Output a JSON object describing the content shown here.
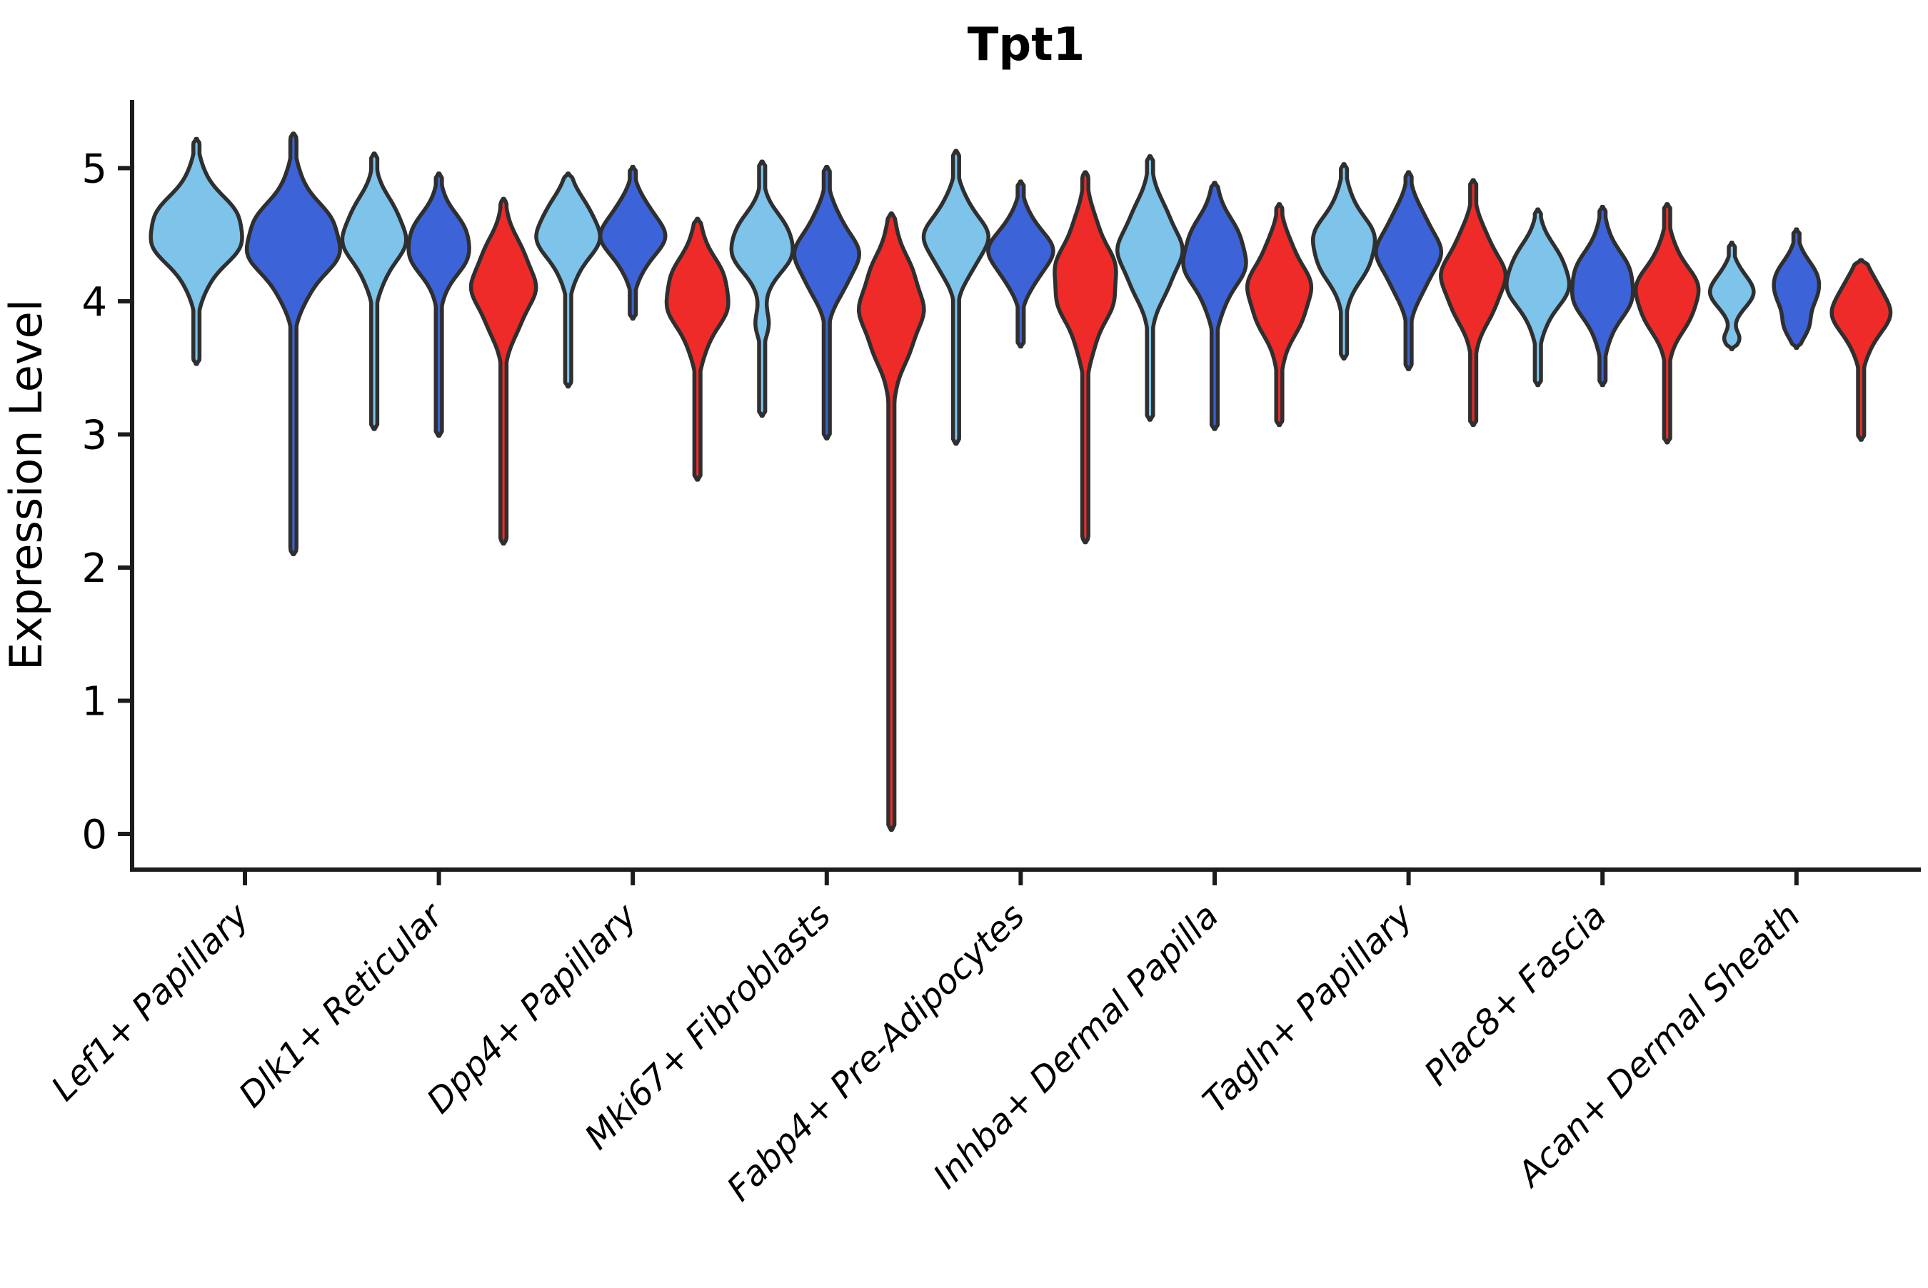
{
  "title": "Tpt1",
  "y_axis": {
    "label": "Expression Level",
    "ticks": [
      0,
      1,
      2,
      3,
      4,
      5
    ]
  },
  "x_axis": {
    "categories": [
      "Lef1+ Papillary",
      "Dlk1+ Reticular",
      "Dpp4+ Papillary",
      "Mki67+ Fibroblasts",
      "Fabp4+ Pre-Adipocytes",
      "Inhba+ Dermal Papilla",
      "Tagln+ Papillary",
      "Plac8+ Fascia",
      "Acan+ Dermal Sheath"
    ]
  },
  "splits": [
    {
      "key": "lightblue",
      "color": "#7DC3EA"
    },
    {
      "key": "blue",
      "color": "#3C64D8"
    },
    {
      "key": "red",
      "color": "#EE2B28"
    }
  ],
  "style": {
    "background": "#FFFFFF",
    "violin_outline": "#2F2F2F",
    "axis_color": "#1C1C1C",
    "text_color": "#000000"
  },
  "chart_data": {
    "type": "violin",
    "title": "Tpt1",
    "xlabel": "",
    "ylabel": "Expression Level",
    "ylim": [
      0,
      5
    ],
    "grid": false,
    "legend_position": "none",
    "categories": [
      "Lef1+ Papillary",
      "Dlk1+ Reticular",
      "Dpp4+ Papillary",
      "Mki67+ Fibroblasts",
      "Fabp4+ Pre-Adipocytes",
      "Inhba+ Dermal Papilla",
      "Tagln+ Papillary",
      "Plac8+ Fascia",
      "Acan+ Dermal Sheath"
    ],
    "violins": [
      {
        "category": "Lef1+ Papillary",
        "split": "lightblue",
        "min": 3.53,
        "max": 5.22,
        "mode": 4.52,
        "sigma": 0.25,
        "extra_peaks": [],
        "rel_width": 1.0
      },
      {
        "category": "Lef1+ Papillary",
        "split": "blue",
        "min": 2.1,
        "max": 5.26,
        "mode": 4.44,
        "sigma": 0.27,
        "extra_peaks": [],
        "rel_width": 1.0
      },
      {
        "category": "Dlk1+ Reticular",
        "split": "lightblue",
        "min": 3.04,
        "max": 5.11,
        "mode": 4.49,
        "sigma": 0.23,
        "extra_peaks": [],
        "rel_width": 1.0
      },
      {
        "category": "Dlk1+ Reticular",
        "split": "blue",
        "min": 2.99,
        "max": 4.96,
        "mode": 4.42,
        "sigma": 0.21,
        "extra_peaks": [],
        "rel_width": 1.0
      },
      {
        "category": "Dlk1+ Reticular",
        "split": "red",
        "min": 2.18,
        "max": 4.77,
        "mode": 4.12,
        "sigma": 0.27,
        "extra_peaks": [],
        "rel_width": 1.0
      },
      {
        "category": "Dpp4+ Papillary",
        "split": "lightblue",
        "min": 3.36,
        "max": 4.96,
        "mode": 4.51,
        "sigma": 0.21,
        "extra_peaks": [],
        "rel_width": 1.0
      },
      {
        "category": "Dpp4+ Papillary",
        "split": "blue",
        "min": 3.87,
        "max": 5.01,
        "mode": 4.5,
        "sigma": 0.19,
        "extra_peaks": [],
        "rel_width": 1.0
      },
      {
        "category": "Dpp4+ Papillary",
        "split": "red",
        "min": 2.66,
        "max": 4.62,
        "mode": 4.04,
        "sigma": 0.26,
        "extra_peaks": [],
        "rel_width": 1.0
      },
      {
        "category": "Mki67+ Fibroblasts",
        "split": "lightblue",
        "min": 3.14,
        "max": 5.05,
        "mode": 4.42,
        "sigma": 0.2,
        "extra_peaks": [
          {
            "v": 3.82,
            "w": 0.2,
            "s": 0.1
          }
        ],
        "rel_width": 1.0
      },
      {
        "category": "Mki67+ Fibroblasts",
        "split": "blue",
        "min": 2.97,
        "max": 5.01,
        "mode": 4.34,
        "sigma": 0.23,
        "extra_peaks": [],
        "rel_width": 1.0
      },
      {
        "category": "Mki67+ Fibroblasts",
        "split": "red",
        "min": 0.03,
        "max": 4.66,
        "mode": 3.95,
        "sigma": 0.32,
        "extra_peaks": [],
        "rel_width": 1.0
      },
      {
        "category": "Fabp4+ Pre-Adipocytes",
        "split": "lightblue",
        "min": 2.93,
        "max": 5.13,
        "mode": 4.47,
        "sigma": 0.21,
        "extra_peaks": [],
        "rel_width": 1.0
      },
      {
        "category": "Fabp4+ Pre-Adipocytes",
        "split": "blue",
        "min": 3.66,
        "max": 4.9,
        "mode": 4.37,
        "sigma": 0.19,
        "extra_peaks": [],
        "rel_width": 1.0
      },
      {
        "category": "Fabp4+ Pre-Adipocytes",
        "split": "red",
        "min": 2.19,
        "max": 4.97,
        "mode": 4.15,
        "sigma": 0.32,
        "extra_peaks": [],
        "rel_width": 1.0
      },
      {
        "category": "Inhba+ Dermal Papilla",
        "split": "lightblue",
        "min": 3.11,
        "max": 5.09,
        "mode": 4.38,
        "sigma": 0.27,
        "extra_peaks": [],
        "rel_width": 1.0
      },
      {
        "category": "Inhba+ Dermal Papilla",
        "split": "blue",
        "min": 3.04,
        "max": 4.89,
        "mode": 4.33,
        "sigma": 0.25,
        "extra_peaks": [],
        "rel_width": 1.0
      },
      {
        "category": "Inhba+ Dermal Papilla",
        "split": "red",
        "min": 3.07,
        "max": 4.73,
        "mode": 4.07,
        "sigma": 0.27,
        "extra_peaks": [],
        "rel_width": 1.0
      },
      {
        "category": "Tagln+ Papillary",
        "split": "lightblue",
        "min": 3.57,
        "max": 5.03,
        "mode": 4.42,
        "sigma": 0.23,
        "extra_peaks": [],
        "rel_width": 1.0
      },
      {
        "category": "Tagln+ Papillary",
        "split": "blue",
        "min": 3.49,
        "max": 4.97,
        "mode": 4.37,
        "sigma": 0.24,
        "extra_peaks": [],
        "rel_width": 1.0
      },
      {
        "category": "Tagln+ Papillary",
        "split": "red",
        "min": 3.07,
        "max": 4.91,
        "mode": 4.17,
        "sigma": 0.26,
        "extra_peaks": [],
        "rel_width": 1.0
      },
      {
        "category": "Plac8+ Fascia",
        "split": "lightblue",
        "min": 3.37,
        "max": 4.69,
        "mode": 4.16,
        "sigma": 0.22,
        "extra_peaks": [],
        "rel_width": 1.0
      },
      {
        "category": "Plac8+ Fascia",
        "split": "blue",
        "min": 3.37,
        "max": 4.71,
        "mode": 4.11,
        "sigma": 0.24,
        "extra_peaks": [],
        "rel_width": 1.0
      },
      {
        "category": "Plac8+ Fascia",
        "split": "red",
        "min": 2.94,
        "max": 4.73,
        "mode": 4.05,
        "sigma": 0.23,
        "extra_peaks": [],
        "rel_width": 1.0
      },
      {
        "category": "Acan+ Dermal Sheath",
        "split": "lightblue",
        "min": 3.64,
        "max": 4.44,
        "mode": 4.08,
        "sigma": 0.13,
        "extra_peaks": [
          {
            "v": 3.72,
            "w": 0.33,
            "s": 0.055
          }
        ],
        "rel_width": 0.68
      },
      {
        "category": "Acan+ Dermal Sheath",
        "split": "blue",
        "min": 3.65,
        "max": 4.54,
        "mode": 4.12,
        "sigma": 0.16,
        "extra_peaks": [
          {
            "v": 3.8,
            "w": 0.4,
            "s": 0.09
          }
        ],
        "rel_width": 0.75
      },
      {
        "category": "Acan+ Dermal Sheath",
        "split": "red",
        "min": 2.96,
        "max": 4.31,
        "mode": 3.93,
        "sigma": 0.2,
        "extra_peaks": [],
        "rel_width": 0.91
      }
    ]
  }
}
